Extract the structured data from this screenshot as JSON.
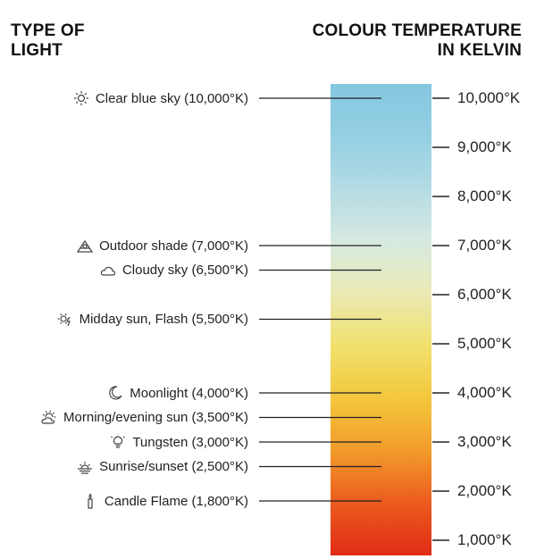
{
  "headings": {
    "left": [
      "TYPE OF",
      "LIGHT"
    ],
    "right": [
      "COLOUR TEMPERATURE",
      "IN KELVIN"
    ]
  },
  "scale": {
    "ticks": [
      {
        "value": 10000,
        "label": "10,000°K"
      },
      {
        "value": 9000,
        "label": "9,000°K"
      },
      {
        "value": 8000,
        "label": "8,000°K"
      },
      {
        "value": 7000,
        "label": "7,000°K"
      },
      {
        "value": 6000,
        "label": "6,000°K"
      },
      {
        "value": 5000,
        "label": "5,000°K"
      },
      {
        "value": 4000,
        "label": "4,000°K"
      },
      {
        "value": 3000,
        "label": "3,000°K"
      },
      {
        "value": 2000,
        "label": "2,000°K"
      },
      {
        "value": 1000,
        "label": "1,000°K"
      }
    ],
    "gradient_colors": [
      "#85c7e0",
      "#94cfe3",
      "#b3dbe4",
      "#d6e9e2",
      "#eaeab6",
      "#f1e06b",
      "#f3c63c",
      "#f29a2a",
      "#eb5a1e",
      "#e02c17"
    ]
  },
  "sources": [
    {
      "label": "Clear blue sky (10,000°K)",
      "kelvin": 10000,
      "icon": "sun-icon"
    },
    {
      "label": "Outdoor shade (7,000°K)",
      "kelvin": 7000,
      "icon": "house-shade-icon"
    },
    {
      "label": "Cloudy sky (6,500°K)",
      "kelvin": 6500,
      "icon": "cloud-icon"
    },
    {
      "label": "Midday sun, Flash (5,500°K)",
      "kelvin": 5500,
      "icon": "flash-sun-icon"
    },
    {
      "label": "Moonlight (4,000°K)",
      "kelvin": 4000,
      "icon": "moon-icon"
    },
    {
      "label": "Morning/evening sun (3,500°K)",
      "kelvin": 3500,
      "icon": "sun-cloud-icon"
    },
    {
      "label": "Tungsten (3,000°K)",
      "kelvin": 3000,
      "icon": "light-bulb-icon"
    },
    {
      "label": "Sunrise/sunset (2,500°K)",
      "kelvin": 2500,
      "icon": "sunrise-icon"
    },
    {
      "label": "Candle Flame (1,800°K)",
      "kelvin": 1800,
      "icon": "candle-icon"
    }
  ]
}
